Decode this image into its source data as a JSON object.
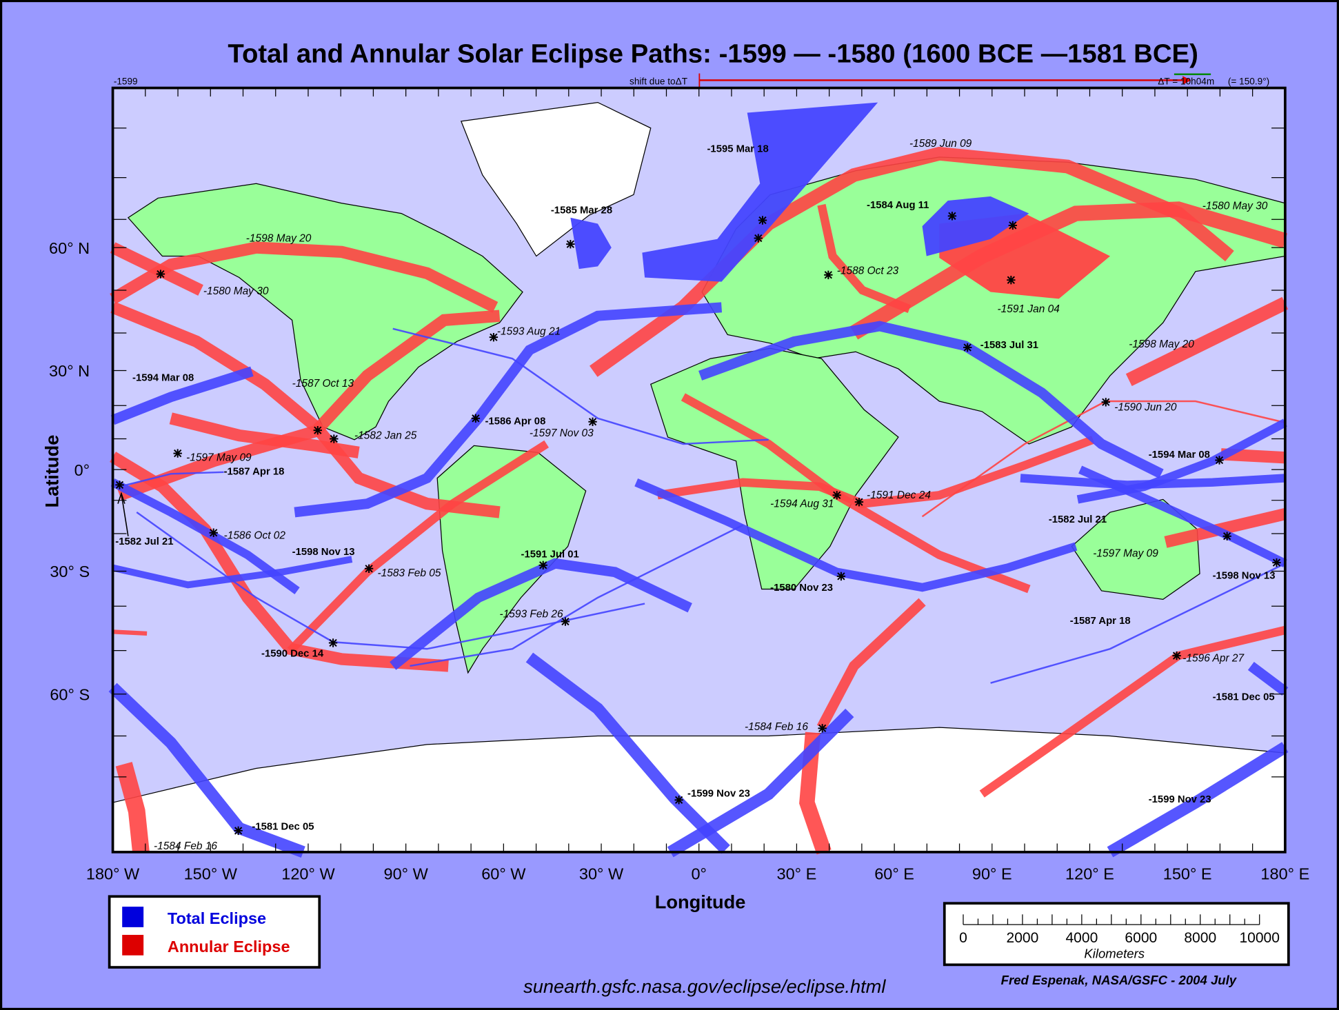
{
  "title": "Total and Annular Solar Eclipse Paths:  -1599 — -1580 (1600 BCE —1581 BCE)",
  "top_bar": {
    "start_year": "-1599",
    "shift_label": "shift due toΔT",
    "delta_t": "ΔT = 10h04m",
    "delta_t_deg": "(= 150.9°)"
  },
  "axes": {
    "ylabel": "Latitude",
    "xlabel": "Longitude",
    "lat_labels": [
      "60° N",
      "30° N",
      "0°",
      "30° S",
      "60° S"
    ],
    "lon_labels": [
      "180° W",
      "150° W",
      "120° W",
      "90° W",
      "60° W",
      "30° W",
      "0°",
      "30° E",
      "60° E",
      "90° E",
      "120° E",
      "150° E",
      "180° E"
    ]
  },
  "legend": {
    "total": "Total Eclipse",
    "annular": "Annular Eclipse"
  },
  "scale": {
    "ticks": [
      "0",
      "2000",
      "4000",
      "6000",
      "8000",
      "10000"
    ],
    "unit": "Kilometers"
  },
  "url": "sunearth.gsfc.nasa.gov/eclipse/eclipse.html",
  "credit": "Fred Espenak, NASA/GSFC - 2004 July",
  "colors": {
    "background": "#9999ff",
    "ocean": "#ccccff",
    "land": "#99ff99",
    "ice": "#ffffff",
    "total": "#4444ff",
    "annular": "#ff4444",
    "total_legend": "#0000dd",
    "annular_legend": "#dd0000"
  },
  "eclipse_labels": [
    {
      "text": "-1595 Mar 18",
      "type": "total"
    },
    {
      "text": "-1585 Mar 28",
      "type": "total"
    },
    {
      "text": "-1584 Aug 11",
      "type": "total"
    },
    {
      "text": "-1583 Jul 31",
      "type": "total"
    },
    {
      "text": "-1594 Mar 08",
      "type": "total"
    },
    {
      "text": "-1586 Apr 08",
      "type": "total"
    },
    {
      "text": "-1587 Apr 18",
      "type": "total"
    },
    {
      "text": "-1582 Jul 21",
      "type": "total"
    },
    {
      "text": "-1598 Nov 13",
      "type": "total"
    },
    {
      "text": "-1591 Jul 01",
      "type": "total"
    },
    {
      "text": "-1590 Dec 14",
      "type": "total"
    },
    {
      "text": "-1580 Nov 23",
      "type": "total"
    },
    {
      "text": "-1594 Mar 08",
      "type": "total"
    },
    {
      "text": "-1582 Jul 21",
      "type": "total"
    },
    {
      "text": "-1587 Apr 18",
      "type": "total"
    },
    {
      "text": "-1598 Nov 13",
      "type": "total"
    },
    {
      "text": "-1581 Dec 05",
      "type": "total"
    },
    {
      "text": "-1599 Nov 23",
      "type": "total"
    },
    {
      "text": "-1599 Nov 23",
      "type": "total"
    },
    {
      "text": "-1581 Dec 05",
      "type": "total"
    },
    {
      "text": "-1589 Jun 09",
      "type": "annular"
    },
    {
      "text": "-1580 May 30",
      "type": "annular"
    },
    {
      "text": "-1598 May 20",
      "type": "annular"
    },
    {
      "text": "-1580 May 30",
      "type": "annular"
    },
    {
      "text": "-1588 Oct 23",
      "type": "annular"
    },
    {
      "text": "-1591 Jan 04",
      "type": "annular"
    },
    {
      "text": "-1593 Aug 21",
      "type": "annular"
    },
    {
      "text": "-1598 May 20",
      "type": "annular"
    },
    {
      "text": "-1587 Oct 13",
      "type": "annular"
    },
    {
      "text": "-1590 Jun 20",
      "type": "annular"
    },
    {
      "text": "-1582 Jan 25",
      "type": "annular"
    },
    {
      "text": "-1597 Nov 03",
      "type": "annular"
    },
    {
      "text": "-1597 May 09",
      "type": "annular"
    },
    {
      "text": "-1591 Dec 24",
      "type": "annular"
    },
    {
      "text": "-1594 Aug 31",
      "type": "annular"
    },
    {
      "text": "-1586 Oct 02",
      "type": "annular"
    },
    {
      "text": "-1583 Feb 05",
      "type": "annular"
    },
    {
      "text": "-1597 May 09",
      "type": "annular"
    },
    {
      "text": "-1593 Feb 26",
      "type": "annular"
    },
    {
      "text": "-1596 Apr 27",
      "type": "annular"
    },
    {
      "text": "-1584 Feb 16",
      "type": "annular"
    },
    {
      "text": "-1584 Feb 16",
      "type": "annular"
    }
  ]
}
